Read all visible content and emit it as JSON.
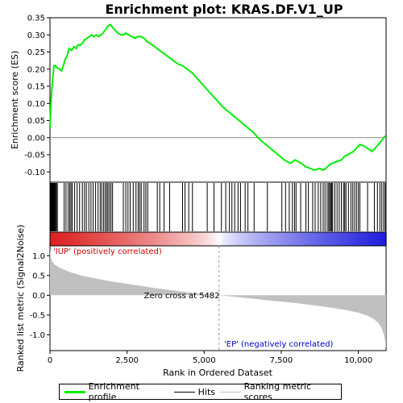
{
  "chart_data": {
    "type": "line",
    "title": "Enrichment plot: KRAS.DF.V1_UP",
    "top_panel": {
      "ylabel": "Enrichment score (ES)",
      "ylim": [
        -0.13,
        0.35
      ],
      "yticks": [
        -0.1,
        -0.05,
        0.0,
        0.05,
        0.1,
        0.15,
        0.2,
        0.25,
        0.3,
        0.35
      ],
      "ytick_labels": [
        "-0.10",
        "-0.05",
        "0.00",
        "0.05",
        "0.10",
        "0.15",
        "0.20",
        "0.25",
        "0.30",
        "0.35"
      ],
      "series": [
        {
          "name": "Enrichment profile",
          "color": "#00ee00",
          "x": [
            0,
            20,
            40,
            60,
            80,
            100,
            130,
            170,
            220,
            300,
            380,
            450,
            500,
            560,
            620,
            700,
            780,
            850,
            900,
            980,
            1050,
            1120,
            1200,
            1280,
            1350,
            1420,
            1500,
            1580,
            1650,
            1720,
            1800,
            1870,
            1950,
            2000,
            2100,
            2200,
            2300,
            2380,
            2450,
            2550,
            2650,
            2750,
            2850,
            2950,
            3050,
            3150,
            3250,
            3400,
            3550,
            3700,
            3850,
            4000,
            4150,
            4300,
            4450,
            4600,
            4800,
            5000,
            5200,
            5400,
            5600,
            5800,
            6000,
            6200,
            6400,
            6600,
            6800,
            7000,
            7200,
            7400,
            7600,
            7800,
            7950,
            8050,
            8150,
            8300,
            8450,
            8550,
            8650,
            8750,
            8850,
            8950,
            9050,
            9150,
            9300,
            9450,
            9550,
            9650,
            9750,
            9850,
            9950,
            10050,
            10200,
            10350,
            10450,
            10550,
            10650,
            10750,
            10820,
            10880
          ],
          "y": [
            0.03,
            0.08,
            0.11,
            0.14,
            0.16,
            0.18,
            0.21,
            0.21,
            0.205,
            0.2,
            0.195,
            0.215,
            0.23,
            0.24,
            0.26,
            0.255,
            0.265,
            0.26,
            0.27,
            0.27,
            0.275,
            0.285,
            0.29,
            0.295,
            0.3,
            0.295,
            0.3,
            0.295,
            0.3,
            0.305,
            0.315,
            0.325,
            0.33,
            0.325,
            0.315,
            0.305,
            0.3,
            0.3,
            0.305,
            0.3,
            0.295,
            0.29,
            0.295,
            0.295,
            0.29,
            0.28,
            0.275,
            0.265,
            0.255,
            0.245,
            0.235,
            0.225,
            0.215,
            0.21,
            0.2,
            0.19,
            0.17,
            0.15,
            0.13,
            0.11,
            0.09,
            0.075,
            0.06,
            0.045,
            0.03,
            0.015,
            -0.005,
            -0.02,
            -0.035,
            -0.05,
            -0.065,
            -0.075,
            -0.065,
            -0.07,
            -0.075,
            -0.085,
            -0.09,
            -0.095,
            -0.093,
            -0.09,
            -0.095,
            -0.09,
            -0.08,
            -0.075,
            -0.07,
            -0.065,
            -0.055,
            -0.05,
            -0.045,
            -0.04,
            -0.03,
            -0.02,
            -0.025,
            -0.035,
            -0.04,
            -0.03,
            -0.02,
            -0.01,
            0.0,
            0.005
          ]
        }
      ]
    },
    "hits_panel": {
      "label": "Hits",
      "hit_ranks": [
        5,
        15,
        28,
        40,
        52,
        66,
        80,
        95,
        110,
        125,
        140,
        160,
        180,
        210,
        240,
        460,
        520,
        590,
        640,
        680,
        720,
        800,
        880,
        960,
        1050,
        1120,
        1180,
        1260,
        1330,
        1400,
        1480,
        1560,
        1630,
        1680,
        1740,
        1790,
        1840,
        1880,
        1930,
        1980,
        2030,
        2380,
        2460,
        2530,
        2600,
        2700,
        2790,
        2860,
        2910,
        2960,
        3050,
        3110,
        3170,
        3480,
        3560,
        3700,
        3880,
        4300,
        4380,
        4500,
        4620,
        5100,
        5320,
        5560,
        5700,
        5820,
        5900,
        5990,
        6100,
        6180,
        6330,
        6420,
        6620,
        7050,
        7520,
        7640,
        7760,
        7860,
        7930,
        7980,
        8130,
        8300,
        8380,
        8520,
        8600,
        8700,
        8780,
        8860,
        8920,
        8990,
        9040,
        9070,
        9110,
        9140,
        9170,
        9240,
        9310,
        9380,
        9450,
        9520,
        9560,
        9600,
        9680,
        9760,
        9820,
        9880,
        9940,
        10000,
        10050,
        10300,
        10520,
        10620,
        10700,
        10760,
        10820,
        10870
      ]
    },
    "bottom_panel": {
      "ylabel": "Ranked list metric (Signal2Noise)",
      "xlabel": "Rank in Ordered Dataset",
      "ylim": [
        -1.4,
        1.25
      ],
      "yticks": [
        -1.0,
        -0.5,
        0.0,
        0.5,
        1.0
      ],
      "ytick_labels": [
        "-1.0",
        "-0.5",
        "0.0",
        "0.5",
        "1.0"
      ],
      "metric_x": [
        0,
        30,
        80,
        150,
        300,
        600,
        1000,
        1500,
        2000,
        2500,
        3000,
        3500,
        4000,
        4500,
        5000,
        5482,
        6000,
        6500,
        7000,
        7500,
        8000,
        8500,
        9000,
        9500,
        10000,
        10300,
        10500,
        10650,
        10750,
        10820,
        10870,
        10900
      ],
      "metric_y": [
        1.15,
        0.95,
        0.85,
        0.78,
        0.7,
        0.6,
        0.5,
        0.42,
        0.35,
        0.29,
        0.23,
        0.17,
        0.12,
        0.07,
        0.03,
        0.0,
        -0.04,
        -0.08,
        -0.12,
        -0.16,
        -0.2,
        -0.25,
        -0.3,
        -0.36,
        -0.44,
        -0.52,
        -0.6,
        -0.7,
        -0.82,
        -0.98,
        -1.15,
        -1.35
      ],
      "zero_cross_rank": 5482,
      "zero_cross_label": "Zero cross at 5482",
      "pos_label": "'IUP' (positively correlated)",
      "neg_label": "'EP' (negatively correlated)",
      "color": "#c0c0c0"
    },
    "xlim": [
      0,
      10900
    ],
    "xticks": [
      0,
      2500,
      5000,
      7500,
      10000
    ],
    "xtick_labels": [
      "0",
      "2,500",
      "5,000",
      "7,500",
      "10,000"
    ],
    "legend": {
      "placement": "bottom",
      "items": [
        {
          "label": "Enrichment profile",
          "color": "#00ee00"
        },
        {
          "label": "Hits",
          "color": "#000000"
        },
        {
          "label": "Ranking metric scores",
          "color": "#c0c0c0"
        }
      ]
    }
  }
}
